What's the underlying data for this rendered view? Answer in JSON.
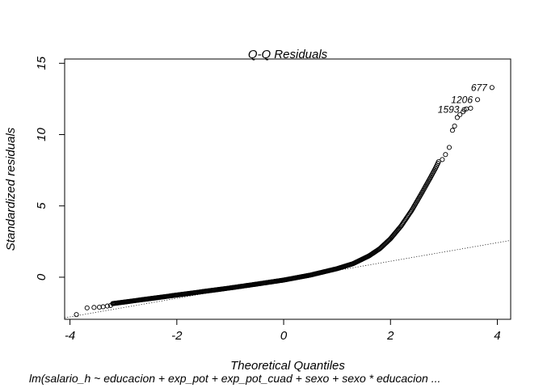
{
  "chart_data": {
    "type": "scatter",
    "title": "Q-Q Residuals",
    "xlabel": "Theoretical Quantiles",
    "ylabel": "Standardized residuals",
    "subtitle": "lm(salario_h ~ educacion + exp_pot + exp_pot_cuad + sexo + sexo * educacion ...",
    "xlim": [
      -4.1,
      4.25
    ],
    "ylim": [
      -2.95,
      15.3
    ],
    "x_ticks": [
      -4,
      -2,
      0,
      2,
      4
    ],
    "x_tick_labels": [
      "-4",
      "-2",
      "0",
      "2",
      "4"
    ],
    "y_ticks": [
      0,
      5,
      10,
      15
    ],
    "y_tick_labels": [
      "0",
      "5",
      "10",
      "15"
    ],
    "reference_line": {
      "intercept": -0.18,
      "slope": 0.65,
      "style": "dotted"
    },
    "grid": false,
    "marker": "open-circle",
    "body_curve": {
      "x": [
        -3.2,
        -3.0,
        -2.5,
        -2.0,
        -1.5,
        -1.0,
        -0.5,
        0.0,
        0.5,
        1.0,
        1.3,
        1.6,
        1.8,
        2.0,
        2.2,
        2.4,
        2.6,
        2.75,
        2.85,
        2.9
      ],
      "y": [
        -1.85,
        -1.75,
        -1.5,
        -1.25,
        -1.0,
        -0.75,
        -0.48,
        -0.2,
        0.15,
        0.6,
        0.95,
        1.5,
        2.0,
        2.7,
        3.6,
        4.7,
        6.0,
        7.0,
        7.7,
        8.1
      ]
    },
    "points": [
      {
        "x": -3.88,
        "y": -2.62
      },
      {
        "x": -3.68,
        "y": -2.15
      },
      {
        "x": -3.55,
        "y": -2.12
      },
      {
        "x": -3.45,
        "y": -2.1
      },
      {
        "x": -3.38,
        "y": -2.07
      },
      {
        "x": -3.3,
        "y": -2.02
      },
      {
        "x": -3.24,
        "y": -1.98
      },
      {
        "x": 2.97,
        "y": 8.25
      },
      {
        "x": 3.03,
        "y": 8.6
      },
      {
        "x": 3.1,
        "y": 9.1
      },
      {
        "x": 3.16,
        "y": 10.3
      },
      {
        "x": 3.2,
        "y": 10.6
      },
      {
        "x": 3.25,
        "y": 11.2
      },
      {
        "x": 3.3,
        "y": 11.4
      },
      {
        "x": 3.36,
        "y": 11.6
      },
      {
        "x": 3.42,
        "y": 11.8
      },
      {
        "x": 3.5,
        "y": 11.85
      },
      {
        "x": 3.38,
        "y": 11.75,
        "label": "1593"
      },
      {
        "x": 3.63,
        "y": 12.45,
        "label": "1206"
      },
      {
        "x": 3.9,
        "y": 13.3,
        "label": "677"
      }
    ]
  }
}
